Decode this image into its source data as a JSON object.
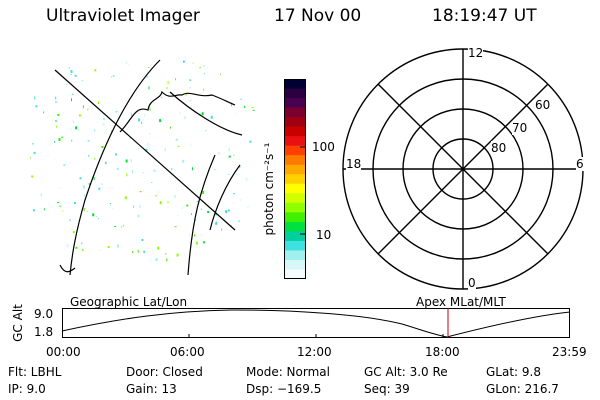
{
  "header": {
    "instrument": "Ultraviolet Imager",
    "date": "17 Nov 00",
    "time": "18:19:47 UT"
  },
  "colorbar": {
    "label": "photon cm⁻²s⁻¹",
    "ticks": [
      "100",
      "10"
    ],
    "colors": [
      "#000033",
      "#2a0040",
      "#4a0050",
      "#7a0030",
      "#a00010",
      "#c80000",
      "#e81010",
      "#ff4000",
      "#ff7a00",
      "#ffa800",
      "#ffd000",
      "#ffff00",
      "#d0ff00",
      "#90ff00",
      "#40f000",
      "#00e040",
      "#00d0a0",
      "#40e0e0",
      "#a0f0f0",
      "#d8f8f8",
      "#f4fcfc"
    ]
  },
  "polar": {
    "labels": {
      "top": "12",
      "bottom": "0",
      "left": "18",
      "right": "6",
      "ring60": "60",
      "ring70": "70",
      "ring80": "80"
    }
  },
  "altitude_plot": {
    "left_title": "Geographic Lat/Lon",
    "right_title": "Apex MLat/MLT",
    "ylabel": "GC Alt",
    "yticks": [
      "9.0",
      "1.8"
    ],
    "xticks": [
      "00:00",
      "06:00",
      "12:00",
      "18:00",
      "23:59"
    ]
  },
  "info": {
    "flt": "Flt: LBHL",
    "ip": "IP:  9.0",
    "door": "Door: Closed",
    "gain": "Gain: 13",
    "mode": "Mode: Normal",
    "dsp": "Dsp: −169.5",
    "gcalt": "GC Alt: 3.0 Re",
    "seq": "Seq: 39",
    "glat": "GLat:   9.8",
    "glon": "GLon: 216.7"
  }
}
